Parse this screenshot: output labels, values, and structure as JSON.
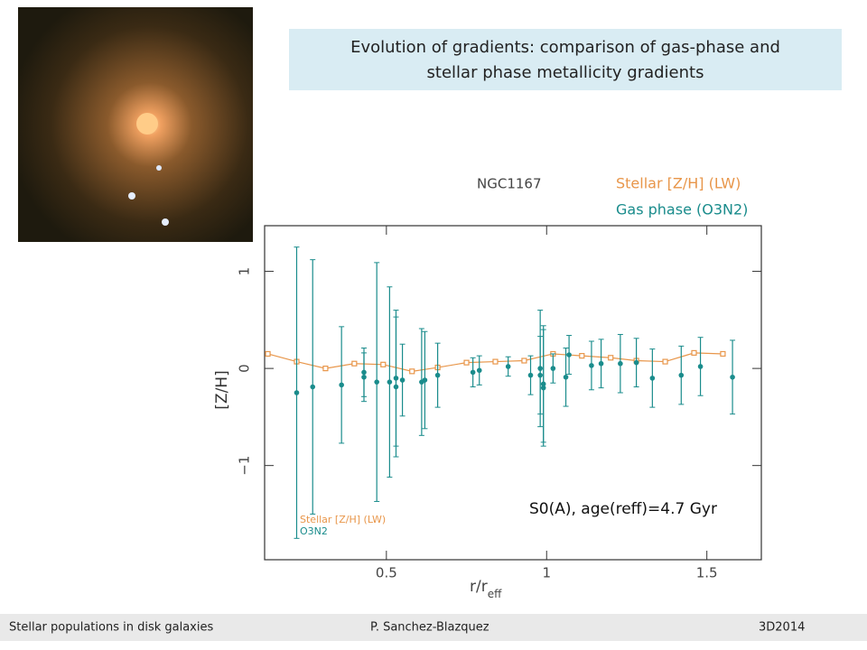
{
  "slide_title": "Evolution of gradients: comparison of gas-phase and stellar phase metallicity gradients",
  "footer": [
    "Stellar populations in disk galaxies",
    "P. Sanchez-Blazquez",
    "3D2014"
  ],
  "chart_data": {
    "type": "scatter",
    "title": "NGC1167",
    "annotation": "S0(A), age(reff)=4.7 Gyr",
    "xlabel": "r/r",
    "xlabel_sub": "eff",
    "ylabel": "[Z/H]",
    "xlim": [
      0.12,
      1.67
    ],
    "ylim": [
      -1.97,
      1.47
    ],
    "xticks": [
      0.5,
      1,
      1.5
    ],
    "yticks": [
      {
        "value": -1,
        "label": "−1"
      },
      0,
      1
    ],
    "inner_legend": [
      "Stellar [Z/H] (LW)",
      "O3N2"
    ],
    "series": [
      {
        "name": "Stellar [Z/H] (LW)",
        "color": "#e8964a",
        "line": true,
        "x": [
          0.13,
          0.22,
          0.31,
          0.4,
          0.49,
          0.58,
          0.66,
          0.75,
          0.84,
          0.93,
          1.02,
          1.11,
          1.2,
          1.28,
          1.37,
          1.46,
          1.55
        ],
        "values": [
          0.15,
          0.07,
          0,
          0.05,
          0.04,
          -0.03,
          0.01,
          0.06,
          0.07,
          0.08,
          0.15,
          0.13,
          0.11,
          0.08,
          0.07,
          0.16,
          0.15
        ]
      },
      {
        "name": "Gas phase (O3N2)",
        "color": "#1a8c8c",
        "line": false,
        "x": [
          0.22,
          0.27,
          0.36,
          0.43,
          0.43,
          0.47,
          0.51,
          0.53,
          0.53,
          0.55,
          0.61,
          0.62,
          0.66,
          0.77,
          0.79,
          0.88,
          0.95,
          0.98,
          0.98,
          0.99,
          0.99,
          1.02,
          1.06,
          1.07,
          1.14,
          1.17,
          1.23,
          1.28,
          1.33,
          1.42,
          1.48,
          1.58
        ],
        "values": [
          -0.25,
          -0.19,
          -0.17,
          -0.09,
          -0.04,
          -0.14,
          -0.14,
          -0.19,
          -0.1,
          -0.12,
          -0.14,
          -0.12,
          -0.07,
          -0.04,
          -0.02,
          0.02,
          -0.07,
          -0.07,
          0,
          -0.16,
          -0.2,
          0,
          -0.09,
          0.14,
          0.03,
          0.05,
          0.05,
          0.06,
          -0.1,
          -0.07,
          0.02,
          -0.09
        ],
        "errors": [
          1.5,
          1.31,
          0.6,
          0.25,
          0.25,
          1.23,
          0.98,
          0.72,
          0.7,
          0.37,
          0.55,
          0.5,
          0.33,
          0.15,
          0.15,
          0.1,
          0.2,
          0.4,
          0.6,
          0.6,
          0.6,
          0.15,
          0.3,
          0.2,
          0.25,
          0.25,
          0.3,
          0.25,
          0.3,
          0.3,
          0.3,
          0.38
        ]
      }
    ]
  }
}
